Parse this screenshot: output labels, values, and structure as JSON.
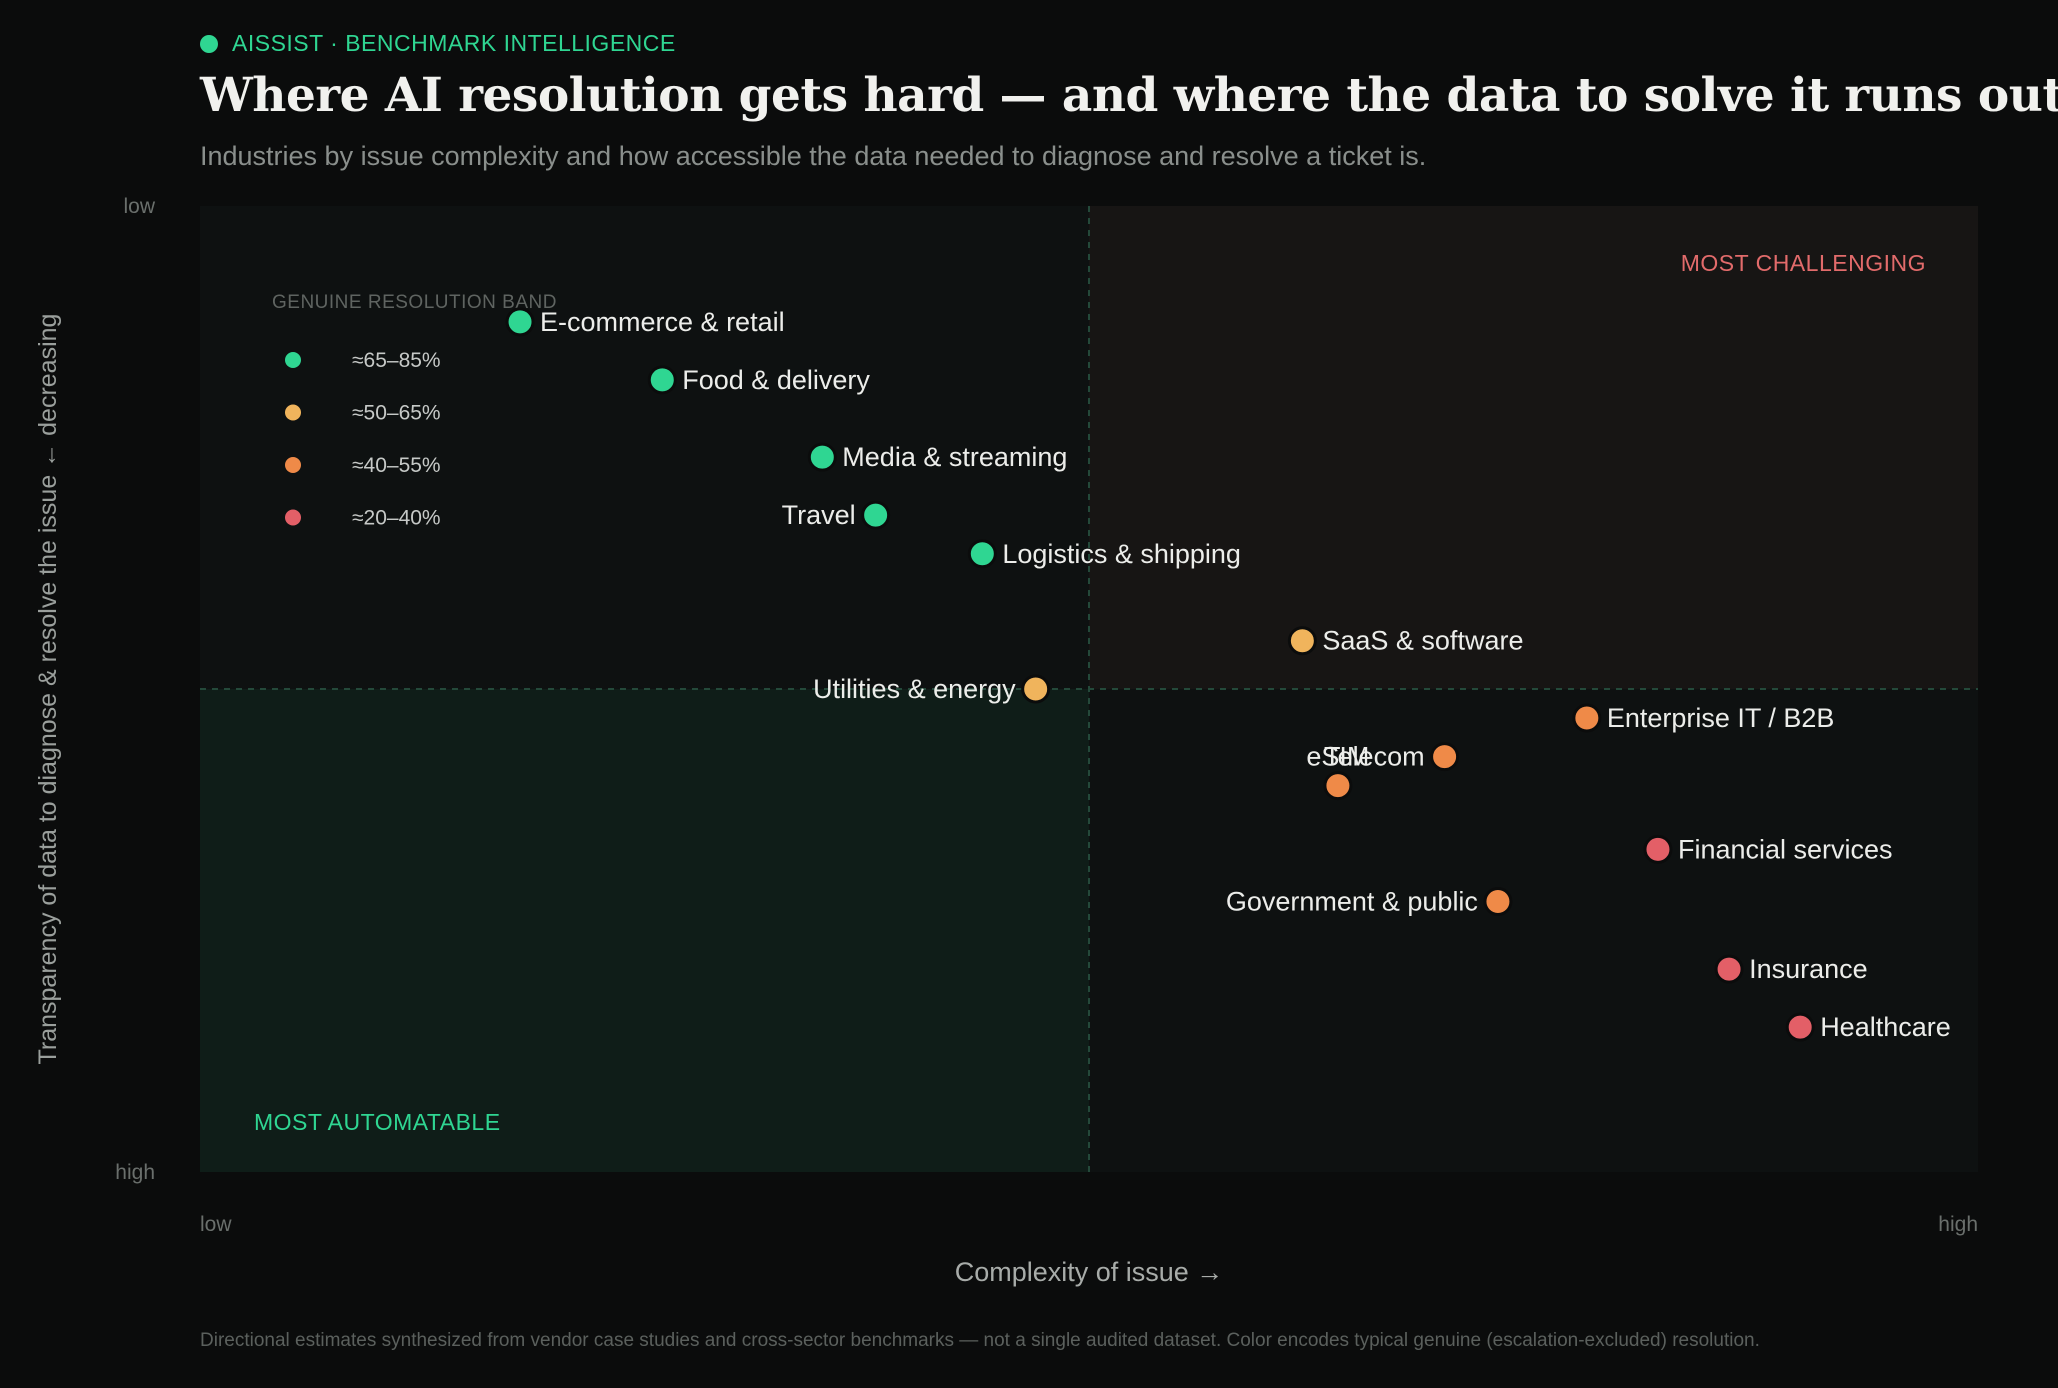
{
  "header": {
    "brand": "AISSIST · BENCHMARK INTELLIGENCE",
    "title": "Where AI resolution gets hard — and where the data to solve it runs out",
    "subtitle": "Industries by issue complexity and how accessible the data needed to diagnose and resolve a ticket is.",
    "footnote": "Directional estimates synthesized from vendor case studies and cross-sector benchmarks — not a single audited dataset. Color encodes typical genuine (escalation-excluded) resolution."
  },
  "colors": {
    "background": "#0b0c0c",
    "brand": "#2fd692",
    "challenging_label": "#e26b6b",
    "automatable_label": "#2fd692"
  },
  "chart_data": {
    "type": "scatter",
    "title": "Where AI resolution gets hard — and where the data to solve it runs out",
    "subtitle": "Industries by issue complexity and how accessible the data needed to diagnose and resolve a ticket is.",
    "xlabel": "Complexity of issue →",
    "ylabel": "Transparency of data to diagnose & resolve the issue ← decreasing",
    "ylabel_main": "Transparency of data to diagnose & resolve the issue",
    "ylabel_dir": "decreasing",
    "x_ticks": [
      "low",
      "high"
    ],
    "y_ticks": [
      "low",
      "high"
    ],
    "xlim": [
      0,
      1
    ],
    "ylim": [
      0,
      1
    ],
    "midpoint": {
      "x": 0.5,
      "y": 0.5
    },
    "grid": false,
    "quadrant_labels": {
      "challenging": "MOST CHALLENGING",
      "automatable": "MOST AUTOMATABLE"
    },
    "legend": {
      "title": "GENUINE RESOLUTION BAND",
      "placement": "top-left",
      "items": [
        {
          "label": "≈65–85%",
          "color": "#2fd692"
        },
        {
          "label": "≈50–65%",
          "color": "#f0b45c"
        },
        {
          "label": "≈40–55%",
          "color": "#ef8a48"
        },
        {
          "label": "≈20–40%",
          "color": "#e35f67"
        }
      ]
    },
    "points": [
      {
        "name": "Healthcare",
        "x": 0.9,
        "y": 0.85,
        "band": 3,
        "label_side": "right"
      },
      {
        "name": "Insurance",
        "x": 0.86,
        "y": 0.79,
        "band": 3,
        "label_side": "right"
      },
      {
        "name": "Government & public",
        "x": 0.73,
        "y": 0.72,
        "band": 2,
        "label_side": "left"
      },
      {
        "name": "Financial services",
        "x": 0.82,
        "y": 0.666,
        "band": 3,
        "label_side": "right"
      },
      {
        "name": "eSIM",
        "x": 0.64,
        "y": 0.6,
        "band": 2,
        "label_side": "above"
      },
      {
        "name": "Telecom",
        "x": 0.7,
        "y": 0.57,
        "band": 2,
        "label_side": "left"
      },
      {
        "name": "Enterprise IT / B2B",
        "x": 0.78,
        "y": 0.53,
        "band": 2,
        "label_side": "right"
      },
      {
        "name": "Utilities & energy",
        "x": 0.47,
        "y": 0.5,
        "band": 1,
        "label_side": "left"
      },
      {
        "name": "SaaS & software",
        "x": 0.62,
        "y": 0.45,
        "band": 1,
        "label_side": "right"
      },
      {
        "name": "Logistics & shipping",
        "x": 0.44,
        "y": 0.36,
        "band": 0,
        "label_side": "right"
      },
      {
        "name": "Travel",
        "x": 0.38,
        "y": 0.32,
        "band": 0,
        "label_side": "left"
      },
      {
        "name": "Media & streaming",
        "x": 0.35,
        "y": 0.26,
        "band": 0,
        "label_side": "right"
      },
      {
        "name": "Food & delivery",
        "x": 0.26,
        "y": 0.18,
        "band": 0,
        "label_side": "right"
      },
      {
        "name": "E-commerce & retail",
        "x": 0.18,
        "y": 0.12,
        "band": 0,
        "label_side": "right"
      }
    ]
  }
}
